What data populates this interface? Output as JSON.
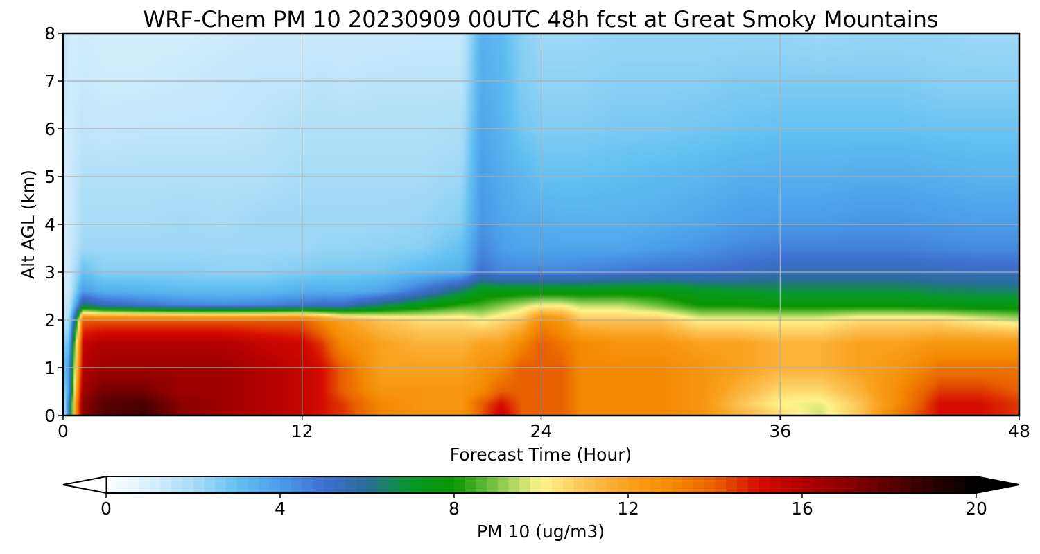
{
  "chart_data": {
    "type": "heatmap",
    "title": "WRF-Chem PM 10  20230909 00UTC 48h fcst at Great Smoky Mountains",
    "xlabel": "Forecast Time (Hour)",
    "ylabel": "Alt AGL (km)",
    "xlim": [
      0,
      48
    ],
    "ylim": [
      0,
      8
    ],
    "xticks": [
      0,
      12,
      24,
      36,
      48
    ],
    "yticks": [
      0,
      1,
      2,
      3,
      4,
      5,
      6,
      7,
      8
    ],
    "grid": true,
    "colorbar": {
      "label": "PM 10  (ug/m3)",
      "range": [
        0,
        20
      ],
      "ticks": [
        0,
        4,
        8,
        12,
        16,
        20
      ],
      "extend": "both",
      "stops": [
        {
          "v": 0,
          "c": "#ffffff"
        },
        {
          "v": 1,
          "c": "#d8effc"
        },
        {
          "v": 2.2,
          "c": "#9ed8f6"
        },
        {
          "v": 3,
          "c": "#64c1f2"
        },
        {
          "v": 4,
          "c": "#4b9ee8"
        },
        {
          "v": 5,
          "c": "#3f6fd0"
        },
        {
          "v": 6,
          "c": "#2a6e9a"
        },
        {
          "v": 7,
          "c": "#079a2a"
        },
        {
          "v": 8,
          "c": "#0a9600"
        },
        {
          "v": 9,
          "c": "#80c74a"
        },
        {
          "v": 10,
          "c": "#fff48c"
        },
        {
          "v": 11,
          "c": "#fcc455"
        },
        {
          "v": 12,
          "c": "#f9a11e"
        },
        {
          "v": 13,
          "c": "#f58a00"
        },
        {
          "v": 14,
          "c": "#e86000"
        },
        {
          "v": 15,
          "c": "#d60c00"
        },
        {
          "v": 16,
          "c": "#b20000"
        },
        {
          "v": 17,
          "c": "#8c0000"
        },
        {
          "v": 18,
          "c": "#5a0000"
        },
        {
          "v": 19,
          "c": "#2a0000"
        },
        {
          "v": 20,
          "c": "#000000"
        }
      ]
    },
    "field": {
      "x": [
        0,
        0.3,
        0.6,
        1,
        2,
        4,
        6,
        8,
        10,
        12,
        13,
        14,
        16,
        18,
        20,
        21,
        22,
        23,
        24,
        25,
        26,
        28,
        30,
        32,
        34,
        36,
        38,
        40,
        42,
        44,
        46,
        48
      ],
      "y": [
        0,
        0.25,
        0.5,
        1,
        1.5,
        2,
        2.3,
        2.6,
        3,
        3.5,
        4,
        5,
        6,
        7,
        8
      ],
      "values": [
        [
          1,
          1,
          2,
          3,
          2.5,
          1.5,
          1.5,
          1.2,
          1.2,
          1.2,
          1.2,
          1.2,
          1.2,
          1.5,
          1.5
        ],
        [
          5,
          5,
          4,
          4,
          3,
          2,
          1.5,
          1.3,
          1.2,
          1.2,
          1.2,
          1.2,
          1.2,
          1.2,
          1.2
        ],
        [
          12,
          12,
          11,
          10,
          9,
          6,
          3.5,
          2.5,
          2,
          1.6,
          1.5,
          1.4,
          1.3,
          1.2,
          1.1
        ],
        [
          17,
          17,
          16.5,
          16,
          15.5,
          14,
          6.5,
          4,
          3,
          2.2,
          2,
          1.8,
          1.5,
          1.3,
          1.2
        ],
        [
          18,
          18,
          17.5,
          16.5,
          16,
          14,
          5.5,
          3.5,
          2.5,
          2.2,
          2,
          1.8,
          1.4,
          1.2,
          1.1
        ],
        [
          18.5,
          18.3,
          17.5,
          16.5,
          16,
          14,
          5,
          3.4,
          2.5,
          2.2,
          2,
          1.8,
          1.5,
          1.2,
          1.1
        ],
        [
          17,
          17,
          16.5,
          16.5,
          16,
          14,
          4.6,
          3.2,
          2.5,
          2.2,
          2.1,
          1.8,
          1.5,
          1.3,
          1.1
        ],
        [
          16.5,
          16.5,
          16.5,
          16.5,
          16,
          14,
          4.4,
          3.2,
          2.4,
          2.2,
          2,
          1.8,
          1.5,
          1.4,
          1.2
        ],
        [
          16,
          16,
          16,
          16,
          15.5,
          14,
          4.6,
          3.2,
          2.4,
          2.2,
          2.2,
          1.8,
          1.6,
          1.5,
          1.3
        ],
        [
          15.5,
          15.5,
          15.5,
          15.5,
          15.2,
          14,
          5,
          3.5,
          2.6,
          2.2,
          2.2,
          2,
          1.8,
          1.5,
          1.3
        ],
        [
          15,
          15,
          15,
          15,
          14.5,
          13,
          5.2,
          3.6,
          2.7,
          2.3,
          2.2,
          2,
          1.8,
          1.6,
          1.3
        ],
        [
          14.5,
          14.5,
          14,
          14,
          13,
          12,
          5.2,
          3.5,
          2.7,
          2.3,
          2.2,
          2,
          1.8,
          1.5,
          1.3
        ],
        [
          13,
          13,
          12.5,
          12,
          12,
          11,
          6.5,
          3.8,
          2.8,
          2.4,
          2.2,
          2,
          1.8,
          1.6,
          1.3
        ],
        [
          12.5,
          12.5,
          12.5,
          12,
          11.5,
          10.5,
          7.5,
          5,
          3.2,
          2.5,
          2.3,
          2,
          1.8,
          1.6,
          1.4
        ],
        [
          12.5,
          12.5,
          12.5,
          12,
          11.5,
          10.5,
          8.3,
          6.5,
          3.5,
          3,
          2.6,
          2.2,
          1.9,
          1.6,
          1.4
        ],
        [
          14,
          14,
          13,
          12.5,
          12,
          10,
          8.5,
          7.5,
          5,
          4.5,
          4.2,
          4,
          3.8,
          3.6,
          3.5
        ],
        [
          15.5,
          15,
          14,
          13,
          12,
          10.5,
          9,
          7.5,
          4.5,
          4,
          3.8,
          3.6,
          3.4,
          3.3,
          3.2
        ],
        [
          14,
          14,
          14,
          14,
          13,
          11,
          9.5,
          7.5,
          4.5,
          3.8,
          3.6,
          3.3,
          2.8,
          2.6,
          2.5
        ],
        [
          14,
          14,
          14,
          14,
          14,
          13,
          10,
          7.5,
          4.5,
          3.8,
          3.6,
          3,
          2.6,
          2.4,
          2.2
        ],
        [
          14,
          14,
          14,
          14,
          13.5,
          12.5,
          10,
          7.5,
          4.5,
          3.8,
          3.5,
          3,
          2.6,
          2.4,
          2.2
        ],
        [
          13,
          13,
          13,
          13,
          13,
          11,
          9.5,
          7.5,
          4.6,
          3.8,
          3.5,
          3,
          2.6,
          2.4,
          2.2
        ],
        [
          13,
          13,
          13,
          13,
          12.5,
          11,
          9.5,
          7.6,
          4.8,
          3.8,
          3.5,
          3.1,
          2.7,
          2.5,
          2.3
        ],
        [
          13,
          13,
          13,
          13,
          12.5,
          11,
          8.8,
          7.6,
          5,
          4,
          3.6,
          3.2,
          2.7,
          2.5,
          2.3
        ],
        [
          12.5,
          12.5,
          12.5,
          12.5,
          12,
          10,
          8,
          7.2,
          5,
          4.2,
          3.8,
          3.3,
          2.8,
          2.5,
          2.3
        ],
        [
          11.5,
          11,
          11.5,
          12,
          12,
          10,
          8,
          7,
          5.2,
          4.5,
          4,
          3.5,
          2.9,
          2.6,
          2.3
        ],
        [
          10.5,
          10,
          10.5,
          11.5,
          11.5,
          10,
          7.8,
          6.8,
          5.5,
          4.6,
          4.1,
          3.5,
          3,
          2.6,
          2.3
        ],
        [
          9.6,
          9.8,
          10.5,
          11.5,
          11.5,
          10,
          7.8,
          6.8,
          5.5,
          4.6,
          4.1,
          3.5,
          3,
          2.6,
          2.2
        ],
        [
          11,
          11,
          11.5,
          12,
          12,
          10.5,
          7.8,
          6.8,
          5.5,
          4.6,
          4.2,
          3.6,
          3,
          2.6,
          2.3
        ],
        [
          13.5,
          13,
          13,
          12.5,
          12,
          10.5,
          7.8,
          6.8,
          5.5,
          4.6,
          4.2,
          3.6,
          3,
          2.6,
          2.3
        ],
        [
          15,
          15,
          14.5,
          13.5,
          12.5,
          10.5,
          7.6,
          6.6,
          5.4,
          4.5,
          4.1,
          3.5,
          2.9,
          2.5,
          2.3
        ],
        [
          15,
          15,
          14.5,
          13.5,
          12.5,
          10,
          7.5,
          6.5,
          5.3,
          4.4,
          4,
          3.4,
          2.9,
          2.5,
          2.2
        ],
        [
          14.5,
          14.5,
          14,
          13.5,
          12.5,
          9.5,
          7.5,
          6.5,
          5.3,
          4.4,
          4,
          3.4,
          2.9,
          2.5,
          2.2
        ]
      ]
    }
  }
}
